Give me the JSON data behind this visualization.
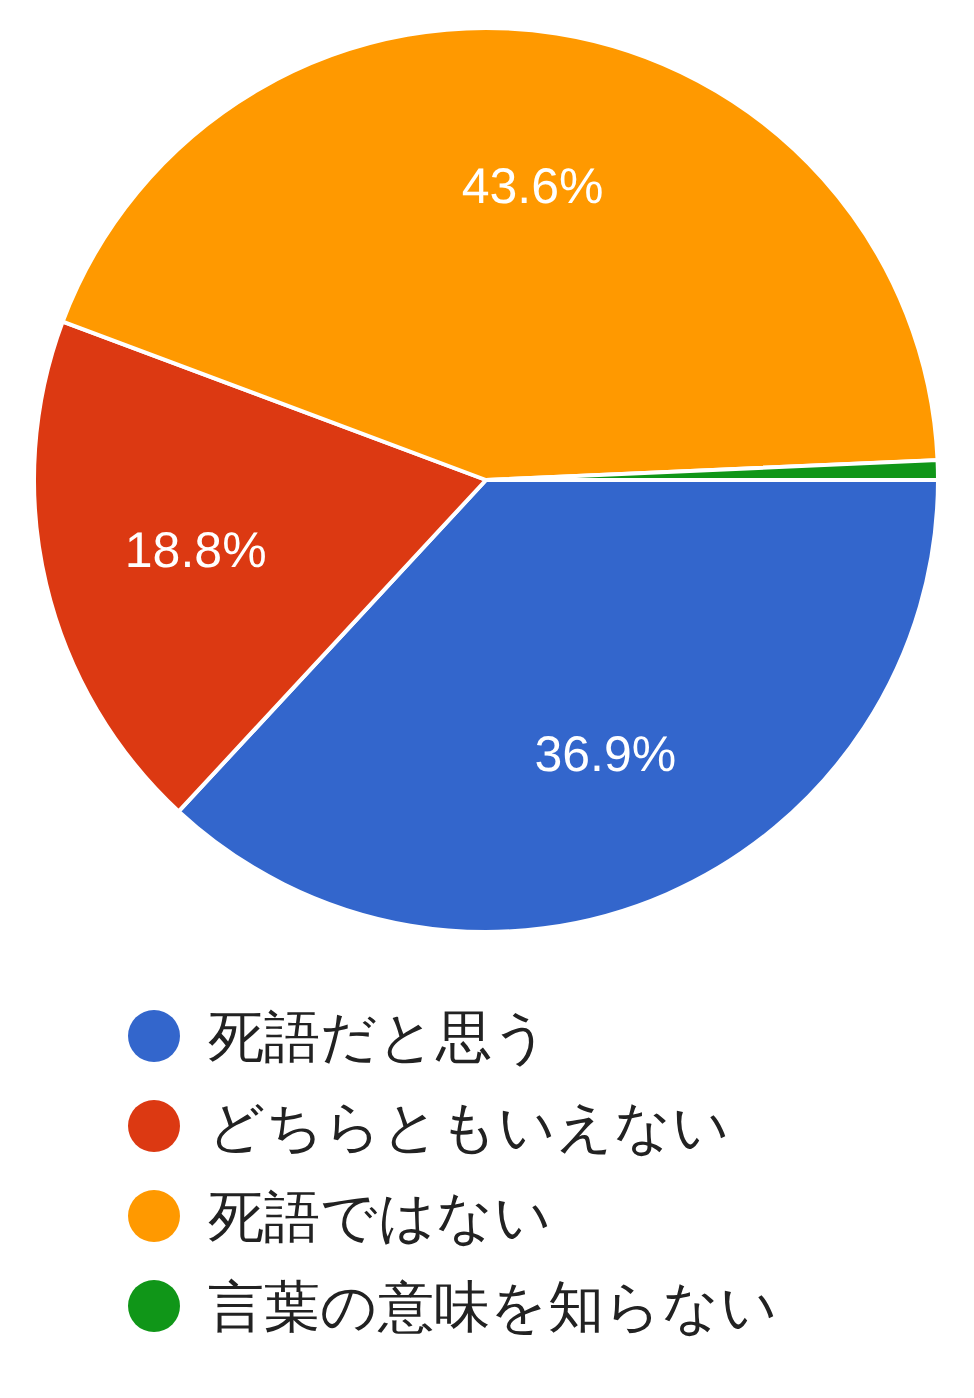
{
  "chart_data": {
    "type": "pie",
    "categories": [
      "死語だと思う",
      "どちらともいえない",
      "死語ではない",
      "言葉の意味を知らない"
    ],
    "values": [
      36.9,
      18.8,
      43.6,
      0.7
    ],
    "colors": [
      "#3366cc",
      "#dc3912",
      "#ff9900",
      "#109618"
    ],
    "value_labels": [
      "36.9%",
      "18.8%",
      "43.6%",
      null
    ],
    "legend": "bottom"
  }
}
